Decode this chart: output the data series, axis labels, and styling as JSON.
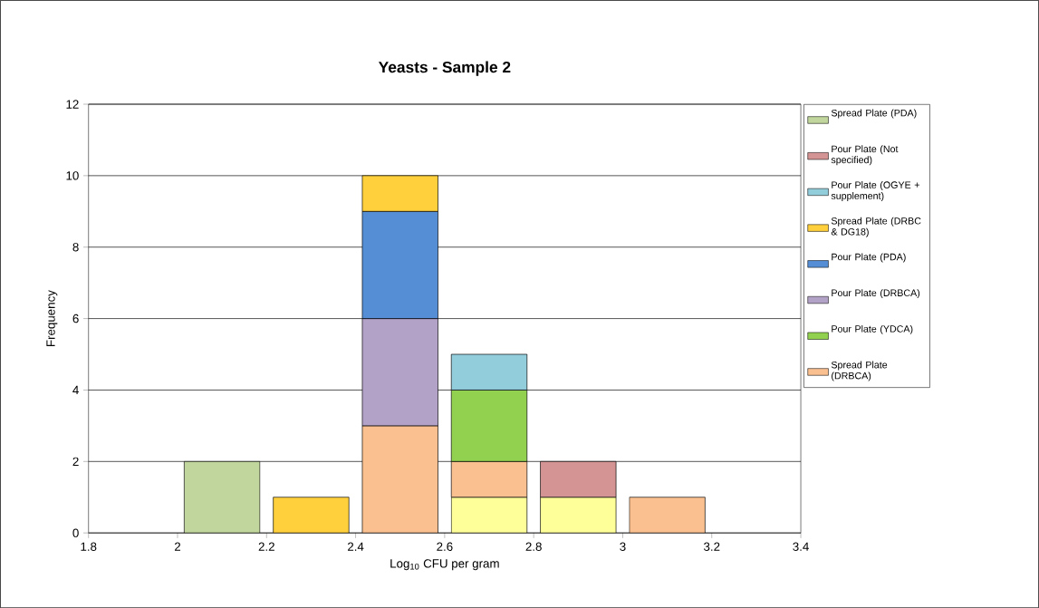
{
  "chart_data": {
    "type": "bar",
    "stacked": true,
    "title": "Yeasts - Sample 2",
    "xlabel": "Log$_{10}$ CFU per gram",
    "ylabel": "Frequency",
    "x": [
      2.1,
      2.3,
      2.5,
      2.7,
      2.9,
      3.1
    ],
    "xlim": [
      1.8,
      3.4
    ],
    "xticks": [
      1.8,
      2,
      2.2,
      2.4,
      2.6,
      2.8,
      3,
      3.2,
      3.4
    ],
    "ylim": [
      0,
      12
    ],
    "yticks": [
      0,
      2,
      4,
      6,
      8,
      10,
      12
    ],
    "grid": "y",
    "legend": "right",
    "series": [
      {
        "color": "#ffff99",
        "values": [
          null,
          null,
          null,
          1,
          1,
          null
        ]
      },
      {
        "name": "Spread Plate (DRBCA)",
        "color": "#fac090",
        "values": [
          null,
          null,
          3,
          1,
          null,
          1
        ]
      },
      {
        "name": "Pour Plate (YDCA)",
        "color": "#92d050",
        "values": [
          null,
          null,
          null,
          2,
          null,
          null
        ]
      },
      {
        "name": "Pour Plate (DRBCA)",
        "color": "#b3a2c7",
        "values": [
          null,
          null,
          3,
          null,
          null,
          null
        ]
      },
      {
        "name": "Pour Plate (PDA)",
        "color": "#558ed5",
        "values": [
          null,
          null,
          3,
          null,
          null,
          null
        ]
      },
      {
        "name": "Spread Plate (DRBC & DG18)",
        "color": "#ffd03c",
        "values": [
          null,
          1,
          1,
          null,
          null,
          null
        ]
      },
      {
        "name": "Pour Plate (OGYE + supplement)",
        "color": "#92cddc",
        "values": [
          null,
          null,
          null,
          1,
          null,
          null
        ]
      },
      {
        "name": "Pour Plate (Not specified)",
        "color": "#d49494",
        "values": [
          null,
          null,
          null,
          null,
          1,
          null
        ]
      },
      {
        "name": "Spread Plate (PDA)",
        "color": "#c0d69c",
        "values": [
          2,
          null,
          null,
          null,
          null,
          null
        ]
      }
    ]
  }
}
